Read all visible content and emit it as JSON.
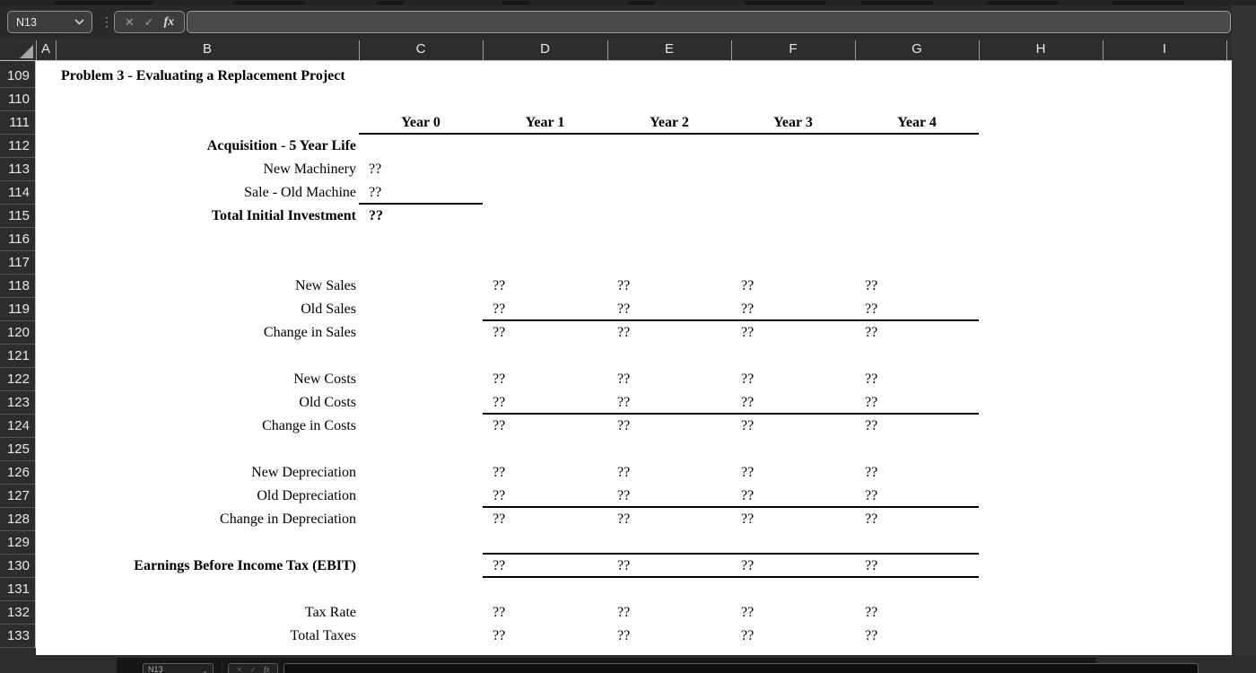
{
  "formula_bar": {
    "cell_ref": "N13",
    "formula": ""
  },
  "icons": {
    "cancel_icon": "✕",
    "enter_icon": "✓",
    "fx_icon": "fx",
    "more_dots_icon": "⋮"
  },
  "columns": [
    "A",
    "B",
    "C",
    "D",
    "E",
    "F",
    "G",
    "H",
    "I"
  ],
  "row_above_viewport": "108",
  "colors": {
    "grid_bg": "#ffffff",
    "sheet_text": "#000000",
    "header_bg": "#2d2d2d",
    "header_text": "#e8e8e8",
    "chrome_bg": "#292929",
    "window_bg": "#333333",
    "border_line": "#000000"
  },
  "sheet": {
    "title": "Problem 3 - Evaluating a Replacement Project",
    "rows": [
      {
        "n": 109,
        "cells": [
          {
            "col": "B",
            "text": "Problem 3 - Evaluating a Replacement Project",
            "bold": true,
            "align": "left"
          }
        ]
      },
      {
        "n": 110,
        "cells": []
      },
      {
        "n": 111,
        "cells": [
          {
            "col": "C",
            "text": "Year 0",
            "bold": true,
            "align": "center"
          },
          {
            "col": "D",
            "text": "Year 1",
            "bold": true,
            "align": "center"
          },
          {
            "col": "E",
            "text": "Year 2",
            "bold": true,
            "align": "center"
          },
          {
            "col": "F",
            "text": "Year 3",
            "bold": true,
            "align": "center"
          },
          {
            "col": "G",
            "text": "Year 4",
            "bold": true,
            "align": "center"
          }
        ],
        "border_bottom": [
          "C",
          "G"
        ]
      },
      {
        "n": 112,
        "cells": [
          {
            "col": "B",
            "text": "Acquisition - 5 Year Life",
            "bold": true,
            "align": "right"
          }
        ]
      },
      {
        "n": 113,
        "cells": [
          {
            "col": "B",
            "text": "New Machinery",
            "align": "right"
          },
          {
            "col": "C",
            "text": "??",
            "align": "val"
          }
        ]
      },
      {
        "n": 114,
        "cells": [
          {
            "col": "B",
            "text": "Sale - Old Machine",
            "align": "right"
          },
          {
            "col": "C",
            "text": "??",
            "align": "val"
          }
        ],
        "border_bottom": [
          "C",
          "C"
        ]
      },
      {
        "n": 115,
        "cells": [
          {
            "col": "B",
            "text": "Total Initial Investment",
            "bold": true,
            "align": "right"
          },
          {
            "col": "C",
            "text": "??",
            "bold": true,
            "align": "val"
          }
        ]
      },
      {
        "n": 116,
        "cells": []
      },
      {
        "n": 117,
        "cells": []
      },
      {
        "n": 118,
        "cells": [
          {
            "col": "B",
            "text": "New Sales",
            "align": "right"
          },
          {
            "col": "D",
            "text": "??",
            "align": "val"
          },
          {
            "col": "E",
            "text": "??",
            "align": "val"
          },
          {
            "col": "F",
            "text": "??",
            "align": "val"
          },
          {
            "col": "G",
            "text": "??",
            "align": "val"
          }
        ]
      },
      {
        "n": 119,
        "cells": [
          {
            "col": "B",
            "text": "Old Sales",
            "align": "right"
          },
          {
            "col": "D",
            "text": "??",
            "align": "val"
          },
          {
            "col": "E",
            "text": "??",
            "align": "val"
          },
          {
            "col": "F",
            "text": "??",
            "align": "val"
          },
          {
            "col": "G",
            "text": "??",
            "align": "val"
          }
        ],
        "border_bottom": [
          "D",
          "G"
        ]
      },
      {
        "n": 120,
        "cells": [
          {
            "col": "B",
            "text": "Change in Sales",
            "align": "right"
          },
          {
            "col": "D",
            "text": "??",
            "align": "val"
          },
          {
            "col": "E",
            "text": "??",
            "align": "val"
          },
          {
            "col": "F",
            "text": "??",
            "align": "val"
          },
          {
            "col": "G",
            "text": "??",
            "align": "val"
          }
        ]
      },
      {
        "n": 121,
        "cells": []
      },
      {
        "n": 122,
        "cells": [
          {
            "col": "B",
            "text": "New Costs",
            "align": "right"
          },
          {
            "col": "D",
            "text": "??",
            "align": "val"
          },
          {
            "col": "E",
            "text": "??",
            "align": "val"
          },
          {
            "col": "F",
            "text": "??",
            "align": "val"
          },
          {
            "col": "G",
            "text": "??",
            "align": "val"
          }
        ]
      },
      {
        "n": 123,
        "cells": [
          {
            "col": "B",
            "text": "Old Costs",
            "align": "right"
          },
          {
            "col": "D",
            "text": "??",
            "align": "val"
          },
          {
            "col": "E",
            "text": "??",
            "align": "val"
          },
          {
            "col": "F",
            "text": "??",
            "align": "val"
          },
          {
            "col": "G",
            "text": "??",
            "align": "val"
          }
        ],
        "border_bottom": [
          "D",
          "G"
        ]
      },
      {
        "n": 124,
        "cells": [
          {
            "col": "B",
            "text": "Change in Costs",
            "align": "right"
          },
          {
            "col": "D",
            "text": "??",
            "align": "val"
          },
          {
            "col": "E",
            "text": "??",
            "align": "val"
          },
          {
            "col": "F",
            "text": "??",
            "align": "val"
          },
          {
            "col": "G",
            "text": "??",
            "align": "val"
          }
        ]
      },
      {
        "n": 125,
        "cells": []
      },
      {
        "n": 126,
        "cells": [
          {
            "col": "B",
            "text": "New Depreciation",
            "align": "right"
          },
          {
            "col": "D",
            "text": "??",
            "align": "val"
          },
          {
            "col": "E",
            "text": "??",
            "align": "val"
          },
          {
            "col": "F",
            "text": "??",
            "align": "val"
          },
          {
            "col": "G",
            "text": "??",
            "align": "val"
          }
        ]
      },
      {
        "n": 127,
        "cells": [
          {
            "col": "B",
            "text": "Old Depreciation",
            "align": "right"
          },
          {
            "col": "D",
            "text": "??",
            "align": "val"
          },
          {
            "col": "E",
            "text": "??",
            "align": "val"
          },
          {
            "col": "F",
            "text": "??",
            "align": "val"
          },
          {
            "col": "G",
            "text": "??",
            "align": "val"
          }
        ],
        "border_bottom": [
          "D",
          "G"
        ]
      },
      {
        "n": 128,
        "cells": [
          {
            "col": "B",
            "text": "Change in Depreciation",
            "align": "right"
          },
          {
            "col": "D",
            "text": "??",
            "align": "val"
          },
          {
            "col": "E",
            "text": "??",
            "align": "val"
          },
          {
            "col": "F",
            "text": "??",
            "align": "val"
          },
          {
            "col": "G",
            "text": "??",
            "align": "val"
          }
        ]
      },
      {
        "n": 129,
        "cells": [],
        "border_bottom": [
          "D",
          "G"
        ]
      },
      {
        "n": 130,
        "cells": [
          {
            "col": "B",
            "text": "Earnings Before Income Tax (EBIT)",
            "bold": true,
            "align": "right"
          },
          {
            "col": "D",
            "text": "??",
            "align": "val"
          },
          {
            "col": "E",
            "text": "??",
            "align": "val"
          },
          {
            "col": "F",
            "text": "??",
            "align": "val"
          },
          {
            "col": "G",
            "text": "??",
            "align": "val"
          }
        ],
        "border_bottom": [
          "D",
          "G"
        ]
      },
      {
        "n": 131,
        "cells": []
      },
      {
        "n": 132,
        "cells": [
          {
            "col": "B",
            "text": "Tax Rate",
            "align": "right"
          },
          {
            "col": "D",
            "text": "??",
            "align": "val"
          },
          {
            "col": "E",
            "text": "??",
            "align": "val"
          },
          {
            "col": "F",
            "text": "??",
            "align": "val"
          },
          {
            "col": "G",
            "text": "??",
            "align": "val"
          }
        ]
      },
      {
        "n": 133,
        "cells": [
          {
            "col": "B",
            "text": "Total Taxes",
            "align": "right"
          },
          {
            "col": "D",
            "text": "??",
            "align": "val"
          },
          {
            "col": "E",
            "text": "??",
            "align": "val"
          },
          {
            "col": "F",
            "text": "??",
            "align": "val"
          },
          {
            "col": "G",
            "text": "??",
            "align": "val"
          }
        ]
      }
    ]
  },
  "bottom_artifact": {
    "cell_ref": "N13"
  }
}
